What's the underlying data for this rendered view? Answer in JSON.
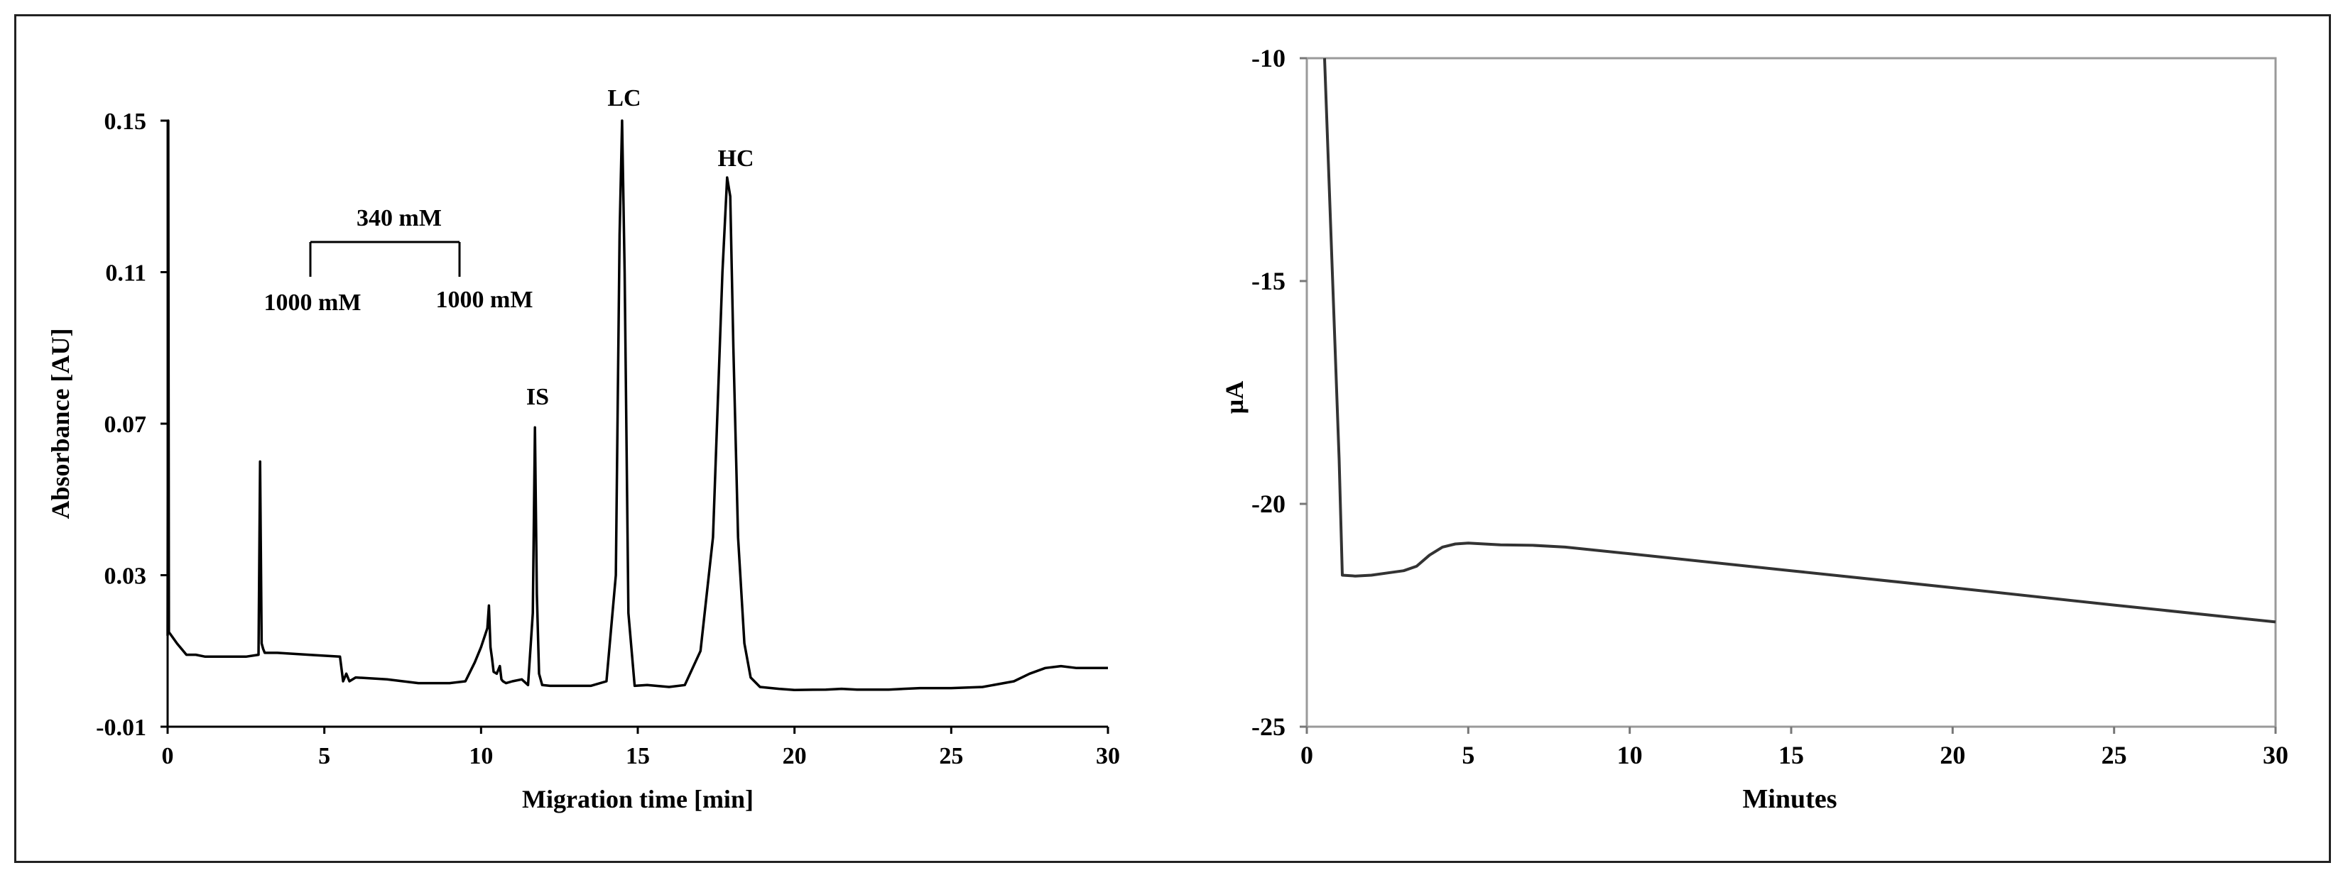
{
  "chart_data": [
    {
      "type": "line",
      "title": "",
      "xlabel": "Migration time [min]",
      "ylabel": "Absorbance [AU]",
      "xlim": [
        0,
        30
      ],
      "ylim": [
        -0.01,
        0.15
      ],
      "x_ticks": [
        "0",
        "5",
        "10",
        "15",
        "20",
        "25",
        "30"
      ],
      "y_ticks": [
        "-0.01",
        "0.03",
        "0.07",
        "0.11",
        "0.15"
      ],
      "grid": false,
      "annotations": {
        "bracket_top": "340 mM",
        "bracket_left": "1000 mM",
        "bracket_right": "1000 mM",
        "peak_is": "IS",
        "peak_lc": "LC",
        "peak_hc": "HC"
      },
      "series": [
        {
          "x": [
            0,
            0.02,
            0.04,
            0.3,
            0.6,
            0.9,
            1.2,
            2.0,
            2.5,
            2.9,
            2.95,
            3.0,
            3.05,
            3.1,
            3.5,
            4.5,
            5.5,
            5.6,
            5.7,
            5.8,
            6.0,
            7.0,
            8.0,
            9.0,
            9.5,
            9.8,
            10.0,
            10.2,
            10.25,
            10.3,
            10.35,
            10.4,
            10.5,
            10.6,
            10.65,
            10.7,
            10.8,
            11.0,
            11.3,
            11.5,
            11.65,
            11.72,
            11.78,
            11.85,
            11.95,
            12.2,
            12.5,
            13.0,
            13.5,
            14.0,
            14.3,
            14.42,
            14.5,
            14.58,
            14.7,
            14.9,
            15.3,
            16.0,
            16.5,
            17.0,
            17.4,
            17.7,
            17.85,
            17.95,
            18.05,
            18.2,
            18.4,
            18.6,
            18.9,
            19.5,
            20.0,
            21.0,
            21.5,
            22.0,
            22.5,
            23.0,
            24.0,
            25.0,
            26.0,
            27.0,
            27.5,
            28.0,
            28.5,
            29.0,
            30.0
          ],
          "y": [
            0.014,
            0.15,
            0.015,
            0.012,
            0.009,
            0.009,
            0.0085,
            0.0085,
            0.0085,
            0.009,
            0.06,
            0.012,
            0.0105,
            0.0095,
            0.0095,
            0.009,
            0.0085,
            0.002,
            0.004,
            0.002,
            0.003,
            0.0025,
            0.0015,
            0.0015,
            0.002,
            0.007,
            0.011,
            0.016,
            0.022,
            0.011,
            0.008,
            0.0045,
            0.004,
            0.006,
            0.0025,
            0.002,
            0.0015,
            0.002,
            0.0025,
            0.001,
            0.02,
            0.069,
            0.025,
            0.004,
            0.001,
            0.0008,
            0.0008,
            0.0008,
            0.0008,
            0.002,
            0.03,
            0.12,
            0.15,
            0.11,
            0.02,
            0.0008,
            0.001,
            0.0005,
            0.001,
            0.01,
            0.04,
            0.11,
            0.135,
            0.13,
            0.09,
            0.04,
            0.012,
            0.003,
            0.0005,
            0.0,
            -0.0003,
            -0.0002,
            0.0,
            -0.0002,
            -0.0002,
            -0.0002,
            0.0002,
            0.0002,
            0.0005,
            0.002,
            0.004,
            0.0055,
            0.006,
            0.0055,
            0.0055
          ]
        }
      ]
    },
    {
      "type": "line",
      "title": "",
      "xlabel": "Minutes",
      "ylabel": "µA",
      "xlim": [
        0,
        30
      ],
      "ylim": [
        -25,
        -10
      ],
      "x_ticks": [
        "0",
        "5",
        "10",
        "15",
        "20",
        "25",
        "30"
      ],
      "y_ticks": [
        "-25",
        "-20",
        "-15",
        "-10"
      ],
      "grid": false,
      "series": [
        {
          "x": [
            0.55,
            1.0,
            1.1,
            1.5,
            2.0,
            2.5,
            3.0,
            3.4,
            3.8,
            4.2,
            4.6,
            5.0,
            5.5,
            6.0,
            7.0,
            8.0,
            10.0,
            15.0,
            20.0,
            25.0,
            30.0
          ],
          "y": [
            -10.0,
            -19.0,
            -21.6,
            -21.62,
            -21.6,
            -21.55,
            -21.5,
            -21.4,
            -21.15,
            -20.97,
            -20.9,
            -20.88,
            -20.9,
            -20.92,
            -20.93,
            -20.97,
            -21.12,
            -21.5,
            -21.88,
            -22.27,
            -22.65
          ]
        }
      ]
    }
  ]
}
